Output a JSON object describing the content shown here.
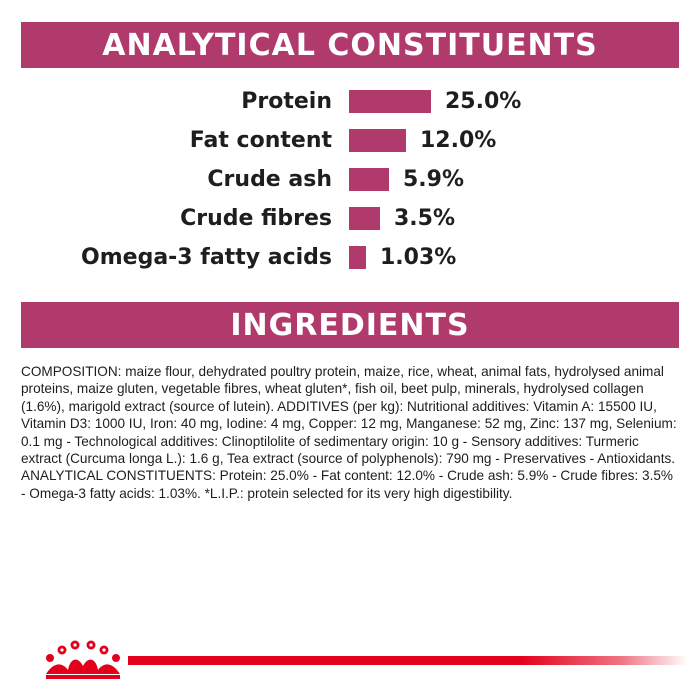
{
  "sections": {
    "analytical_title": "ANALYTICAL CONSTITUENTS",
    "ingredients_title": "INGREDIENTS"
  },
  "constituents": [
    {
      "label": "Protein",
      "value_text": "25.0%",
      "percent": 25.0
    },
    {
      "label": "Fat content",
      "value_text": "12.0%",
      "percent": 12.0
    },
    {
      "label": "Crude ash",
      "value_text": "5.9%",
      "percent": 5.9
    },
    {
      "label": "Crude fibres",
      "value_text": "3.5%",
      "percent": 3.5
    },
    {
      "label": "Omega-3 fatty acids",
      "value_text": "1.03%",
      "percent": 1.03
    }
  ],
  "chart_data": {
    "type": "bar",
    "categories": [
      "Protein",
      "Fat content",
      "Crude ash",
      "Crude fibres",
      "Omega-3 fatty acids"
    ],
    "values": [
      25.0,
      12.0,
      5.9,
      3.5,
      1.03
    ],
    "title": "ANALYTICAL CONSTITUENTS",
    "xlabel": "",
    "ylabel": ""
  },
  "ingredients": {
    "text": "COMPOSITION: maize flour, dehydrated poultry protein, maize, rice, wheat, animal fats, hydrolysed animal proteins, maize gluten, vegetable fibres, wheat gluten*, fish oil, beet pulp, minerals, hydrolysed collagen (1.6%), marigold extract (source of lutein). ADDITIVES (per kg): Nutritional additives: Vitamin A: 15500 IU, Vitamin D3: 1000 IU, Iron: 40 mg, Iodine: 4 mg, Copper: 12 mg, Manganese: 52 mg, Zinc: 137 mg, Selenium: 0.1 mg - Technological additives: Clinoptilolite of sedimentary origin: 10 g - Sensory additives: Turmeric extract (Curcuma longa L.): 1.6 g, Tea extract (source of polyphenols): 790 mg - Preservatives - Antioxidants. ANALYTICAL CONSTITUENTS: Protein: 25.0% - Fat content: 12.0% - Crude ash: 5.9% - Crude fibres: 3.5% - Omega-3 fatty acids: 1.03%. *L.I.P.: protein selected for its very high digestibility."
  },
  "colors": {
    "accent": "#b03a6c",
    "footer_line": "#e3001b"
  },
  "icons": {
    "logo": "royal-canin-crown-icon"
  }
}
